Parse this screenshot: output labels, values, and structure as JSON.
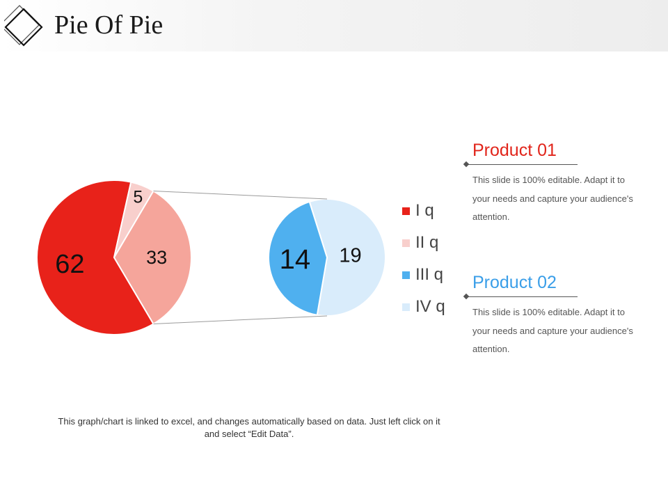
{
  "slide": {
    "title": "Pie Of Pie",
    "footnote": "This graph/chart is linked to excel, and changes automatically based on data. Just left click on it and select “Edit Data”."
  },
  "products": [
    {
      "title": "Product 01",
      "color": "#e1251b",
      "description": "This slide is 100% editable. Adapt it to your needs and capture your audience's attention."
    },
    {
      "title": "Product 02",
      "color": "#3a9ee8",
      "description": "This slide is 100% editable. Adapt it to your needs and capture your audience's attention."
    }
  ],
  "legend": [
    {
      "label": "I q",
      "color": "#e8221a"
    },
    {
      "label": "II q",
      "color": "#f8cfcc"
    },
    {
      "label": "III q",
      "color": "#4fb0ef"
    },
    {
      "label": "IV q",
      "color": "#d9ecfb"
    }
  ],
  "chart_data": {
    "type": "pie",
    "title": "",
    "primary": {
      "slices": [
        {
          "label": "62",
          "value": 62,
          "color": "#e8221a"
        },
        {
          "label": "5",
          "value": 5,
          "color": "#f8cfcc"
        },
        {
          "label": "33",
          "value": 33,
          "color": "#f5a59b"
        }
      ]
    },
    "secondary": {
      "expands": "33",
      "slices": [
        {
          "label": "19",
          "value": 19,
          "color": "#d9ecfb"
        },
        {
          "label": "14",
          "value": 14,
          "color": "#4fb0ef"
        }
      ]
    }
  }
}
